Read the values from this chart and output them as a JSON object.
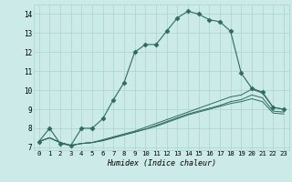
{
  "title": "",
  "xlabel": "Humidex (Indice chaleur)",
  "x_ticks": [
    0,
    1,
    2,
    3,
    4,
    5,
    6,
    7,
    8,
    9,
    10,
    11,
    12,
    13,
    14,
    15,
    16,
    17,
    18,
    19,
    20,
    21,
    22,
    23
  ],
  "ylim": [
    6.85,
    14.5
  ],
  "xlim": [
    -0.5,
    23.5
  ],
  "yticks": [
    7,
    8,
    9,
    10,
    11,
    12,
    13,
    14
  ],
  "background_color": "#cceae7",
  "line_color": "#2e6b5e",
  "grid_color": "#a8d5cf",
  "lines": [
    [
      7.3,
      8.0,
      7.2,
      7.1,
      8.0,
      8.0,
      8.5,
      9.5,
      10.4,
      12.0,
      12.4,
      12.4,
      13.1,
      13.8,
      14.15,
      14.0,
      13.7,
      13.6,
      13.1,
      10.9,
      10.1,
      9.9,
      9.1,
      9.0
    ],
    [
      7.3,
      7.5,
      7.25,
      7.1,
      7.2,
      7.25,
      7.4,
      7.55,
      7.7,
      7.85,
      8.05,
      8.25,
      8.45,
      8.65,
      8.85,
      9.05,
      9.25,
      9.45,
      9.65,
      9.75,
      10.05,
      9.85,
      9.1,
      9.0
    ],
    [
      7.3,
      7.5,
      7.25,
      7.1,
      7.2,
      7.25,
      7.35,
      7.5,
      7.65,
      7.8,
      7.95,
      8.15,
      8.35,
      8.55,
      8.75,
      8.9,
      9.05,
      9.2,
      9.4,
      9.5,
      9.75,
      9.6,
      8.9,
      8.85
    ],
    [
      7.3,
      7.5,
      7.25,
      7.1,
      7.2,
      7.25,
      7.35,
      7.5,
      7.65,
      7.8,
      7.95,
      8.1,
      8.3,
      8.5,
      8.7,
      8.85,
      9.0,
      9.15,
      9.3,
      9.4,
      9.55,
      9.4,
      8.8,
      8.75
    ]
  ],
  "marker_line_idx": 0,
  "marker": "D",
  "markersize": 2.5,
  "linewidth_main": 0.8,
  "linewidth_other": 0.7
}
